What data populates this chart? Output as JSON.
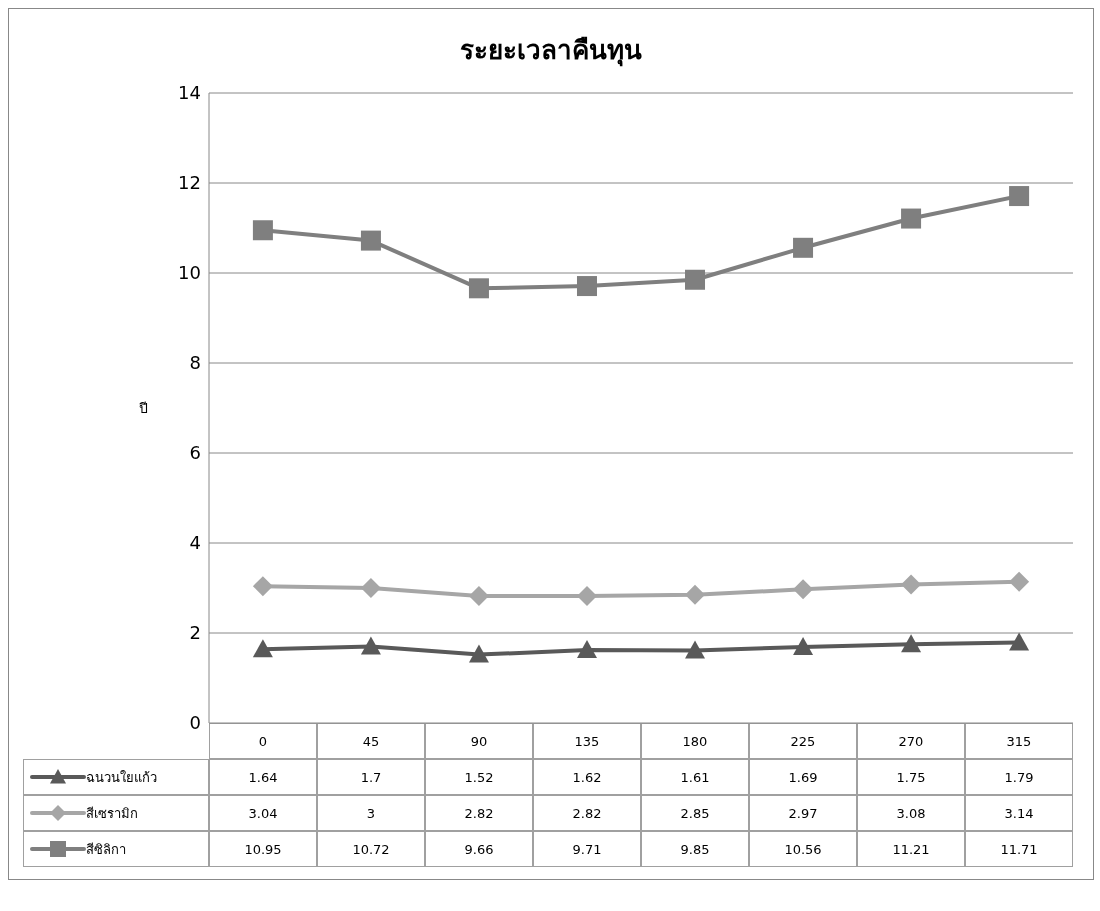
{
  "chart_data": {
    "type": "line",
    "title": "ระยะเวลาคืนทุน",
    "ylabel": "ปี",
    "categories": [
      "0",
      "45",
      "90",
      "135",
      "180",
      "225",
      "270",
      "315"
    ],
    "series": [
      {
        "name": "ฉนวนใยแก้ว",
        "color": "#595959",
        "marker": "triangle",
        "values": [
          1.64,
          1.7,
          1.52,
          1.62,
          1.61,
          1.69,
          1.75,
          1.79
        ]
      },
      {
        "name": "สีเซรามิก",
        "color": "#a6a6a6",
        "marker": "diamond",
        "values": [
          3.04,
          3,
          2.82,
          2.82,
          2.85,
          2.97,
          3.08,
          3.14
        ]
      },
      {
        "name": "สีซิลิกา",
        "color": "#7f7f7f",
        "marker": "square",
        "values": [
          10.95,
          10.72,
          9.66,
          9.71,
          9.85,
          10.56,
          11.21,
          11.71
        ]
      }
    ],
    "ylim": [
      0,
      14
    ],
    "yticks": [
      0,
      2,
      4,
      6,
      8,
      10,
      12,
      14
    ],
    "grid": "y",
    "legend": "bottom",
    "data_labels": true,
    "line_style": "solid"
  }
}
